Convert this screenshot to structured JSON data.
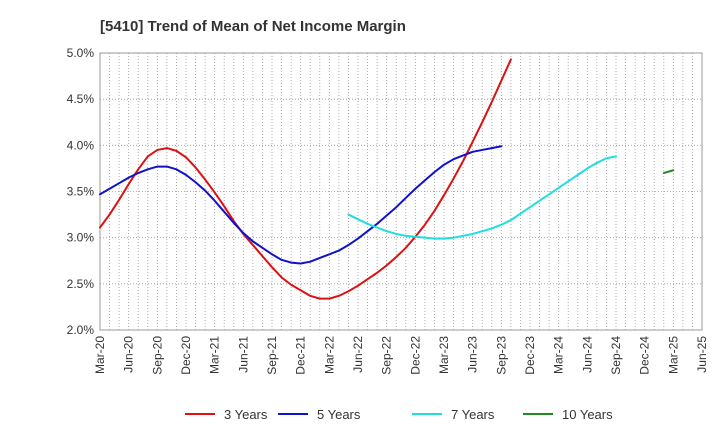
{
  "chart_data": {
    "type": "line",
    "title": "[5410]  Trend of Mean of Net Income Margin",
    "xlabel": "",
    "ylabel": "",
    "ylim": [
      2.0,
      5.0
    ],
    "y_ticks": [
      "2.0%",
      "2.5%",
      "3.0%",
      "3.5%",
      "4.0%",
      "4.5%",
      "5.0%"
    ],
    "x_ticks": [
      "Mar-20",
      "Jun-20",
      "Sep-20",
      "Dec-20",
      "Mar-21",
      "Jun-21",
      "Sep-21",
      "Dec-21",
      "Mar-22",
      "Jun-22",
      "Sep-22",
      "Dec-22",
      "Mar-23",
      "Jun-23",
      "Sep-23",
      "Dec-23",
      "Mar-24",
      "Jun-24",
      "Sep-24",
      "Dec-24",
      "Mar-25",
      "Jun-25"
    ],
    "grid": true,
    "legend_position": "bottom",
    "series": [
      {
        "name": "3 Years",
        "color": "#dd1111",
        "points": [
          [
            0,
            3.11
          ],
          [
            1,
            3.25
          ],
          [
            2,
            3.41
          ],
          [
            3,
            3.58
          ],
          [
            4,
            3.74
          ],
          [
            5,
            3.88
          ],
          [
            6,
            3.95
          ],
          [
            7,
            3.97
          ],
          [
            8,
            3.94
          ],
          [
            9,
            3.87
          ],
          [
            10,
            3.76
          ],
          [
            11,
            3.63
          ],
          [
            12,
            3.49
          ],
          [
            13,
            3.34
          ],
          [
            14,
            3.18
          ],
          [
            15,
            3.04
          ],
          [
            16,
            2.92
          ],
          [
            17,
            2.8
          ],
          [
            18,
            2.68
          ],
          [
            19,
            2.57
          ],
          [
            20,
            2.49
          ],
          [
            21,
            2.43
          ],
          [
            22,
            2.37
          ],
          [
            23,
            2.34
          ],
          [
            24,
            2.34
          ],
          [
            25,
            2.37
          ],
          [
            26,
            2.42
          ],
          [
            27,
            2.48
          ],
          [
            28,
            2.55
          ],
          [
            29,
            2.62
          ],
          [
            30,
            2.7
          ],
          [
            31,
            2.79
          ],
          [
            32,
            2.89
          ],
          [
            33,
            3.01
          ],
          [
            34,
            3.14
          ],
          [
            35,
            3.29
          ],
          [
            36,
            3.46
          ],
          [
            37,
            3.64
          ],
          [
            38,
            3.83
          ],
          [
            39,
            4.04
          ],
          [
            40,
            4.25
          ],
          [
            41,
            4.47
          ],
          [
            42,
            4.7
          ],
          [
            43,
            4.93
          ]
        ]
      },
      {
        "name": "5 Years",
        "color": "#1111cc",
        "points": [
          [
            0,
            3.47
          ],
          [
            1,
            3.53
          ],
          [
            2,
            3.59
          ],
          [
            3,
            3.65
          ],
          [
            4,
            3.7
          ],
          [
            5,
            3.74
          ],
          [
            6,
            3.77
          ],
          [
            7,
            3.77
          ],
          [
            8,
            3.74
          ],
          [
            9,
            3.68
          ],
          [
            10,
            3.6
          ],
          [
            11,
            3.51
          ],
          [
            12,
            3.4
          ],
          [
            13,
            3.28
          ],
          [
            14,
            3.16
          ],
          [
            15,
            3.05
          ],
          [
            16,
            2.96
          ],
          [
            17,
            2.89
          ],
          [
            18,
            2.82
          ],
          [
            19,
            2.76
          ],
          [
            20,
            2.73
          ],
          [
            21,
            2.72
          ],
          [
            22,
            2.74
          ],
          [
            23,
            2.78
          ],
          [
            24,
            2.82
          ],
          [
            25,
            2.86
          ],
          [
            26,
            2.92
          ],
          [
            27,
            2.99
          ],
          [
            28,
            3.07
          ],
          [
            29,
            3.15
          ],
          [
            30,
            3.24
          ],
          [
            31,
            3.33
          ],
          [
            32,
            3.43
          ],
          [
            33,
            3.53
          ],
          [
            34,
            3.62
          ],
          [
            35,
            3.71
          ],
          [
            36,
            3.79
          ],
          [
            37,
            3.85
          ],
          [
            38,
            3.89
          ],
          [
            39,
            3.93
          ],
          [
            40,
            3.95
          ],
          [
            41,
            3.97
          ],
          [
            42,
            3.99
          ]
        ]
      },
      {
        "name": "7 Years",
        "color": "#22dddd",
        "points": [
          [
            0,
            3.25
          ],
          [
            1,
            3.2
          ],
          [
            2,
            3.15
          ],
          [
            3,
            3.11
          ],
          [
            4,
            3.07
          ],
          [
            5,
            3.04
          ],
          [
            6,
            3.02
          ],
          [
            7,
            3.01
          ],
          [
            8,
            3.0
          ],
          [
            9,
            2.99
          ],
          [
            10,
            2.99
          ],
          [
            11,
            3.0
          ],
          [
            12,
            3.02
          ],
          [
            13,
            3.04
          ],
          [
            14,
            3.07
          ],
          [
            15,
            3.1
          ],
          [
            16,
            3.14
          ],
          [
            17,
            3.19
          ],
          [
            18,
            3.26
          ],
          [
            19,
            3.33
          ],
          [
            20,
            3.4
          ],
          [
            21,
            3.47
          ],
          [
            22,
            3.54
          ],
          [
            23,
            3.61
          ],
          [
            24,
            3.68
          ],
          [
            25,
            3.75
          ],
          [
            26,
            3.81
          ],
          [
            27,
            3.86
          ],
          [
            28,
            3.88
          ]
        ]
      },
      {
        "name": "10 Years",
        "color": "#228822",
        "points": [
          [
            0,
            3.7
          ],
          [
            1,
            3.73
          ]
        ]
      }
    ],
    "series_start_month": [
      0,
      0,
      26,
      59
    ]
  }
}
